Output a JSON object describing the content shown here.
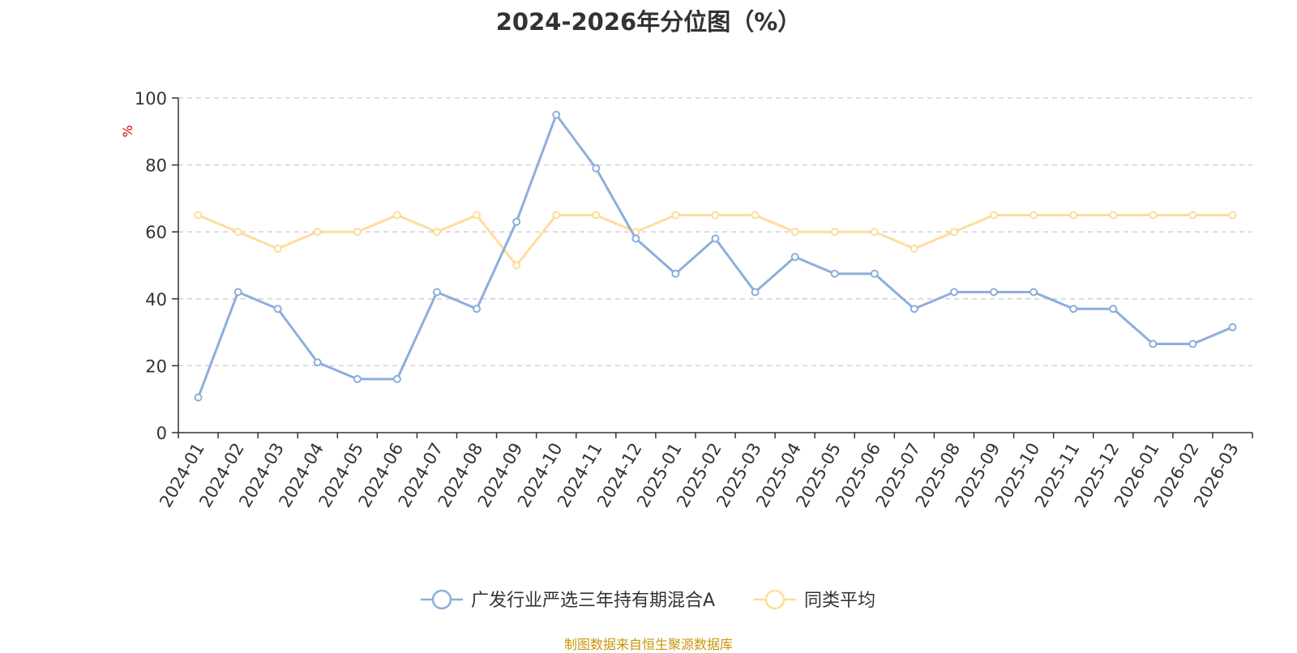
{
  "chart_data": {
    "type": "line",
    "title": "2024-2026年分位图（%）",
    "ylabel": "%",
    "ylim": [
      0,
      100
    ],
    "yticks": [
      0,
      20,
      40,
      60,
      80,
      100
    ],
    "grid": true,
    "legend_position": "bottom",
    "categories": [
      "2024-01",
      "2024-02",
      "2024-03",
      "2024-04",
      "2024-05",
      "2024-06",
      "2024-07",
      "2024-08",
      "2024-09",
      "2024-10",
      "2024-11",
      "2024-12",
      "2025-01",
      "2025-02",
      "2025-03",
      "2025-04",
      "2025-05",
      "2025-06",
      "2025-07",
      "2025-08",
      "2025-09",
      "2025-10",
      "2025-11",
      "2025-12",
      "2026-01",
      "2026-02",
      "2026-03"
    ],
    "series": [
      {
        "name": "广发行业严选三年持有期混合A",
        "color": "#8eaedb",
        "values": [
          10.5,
          42,
          37,
          21,
          16,
          16,
          42,
          37,
          63,
          95,
          79,
          58,
          47.5,
          58,
          42,
          52.5,
          47.5,
          47.5,
          37,
          42,
          42,
          42,
          37,
          37,
          26.5,
          26.5,
          31.5
        ]
      },
      {
        "name": "同类平均",
        "color": "#fddd9b",
        "values": [
          65,
          60,
          55,
          60,
          60,
          65,
          60,
          65,
          50,
          65,
          65,
          60,
          65,
          65,
          65,
          60,
          60,
          60,
          55,
          60,
          65,
          65,
          65,
          65,
          65,
          65,
          65
        ]
      }
    ],
    "source": "制图数据来自恒生聚源数据库"
  }
}
